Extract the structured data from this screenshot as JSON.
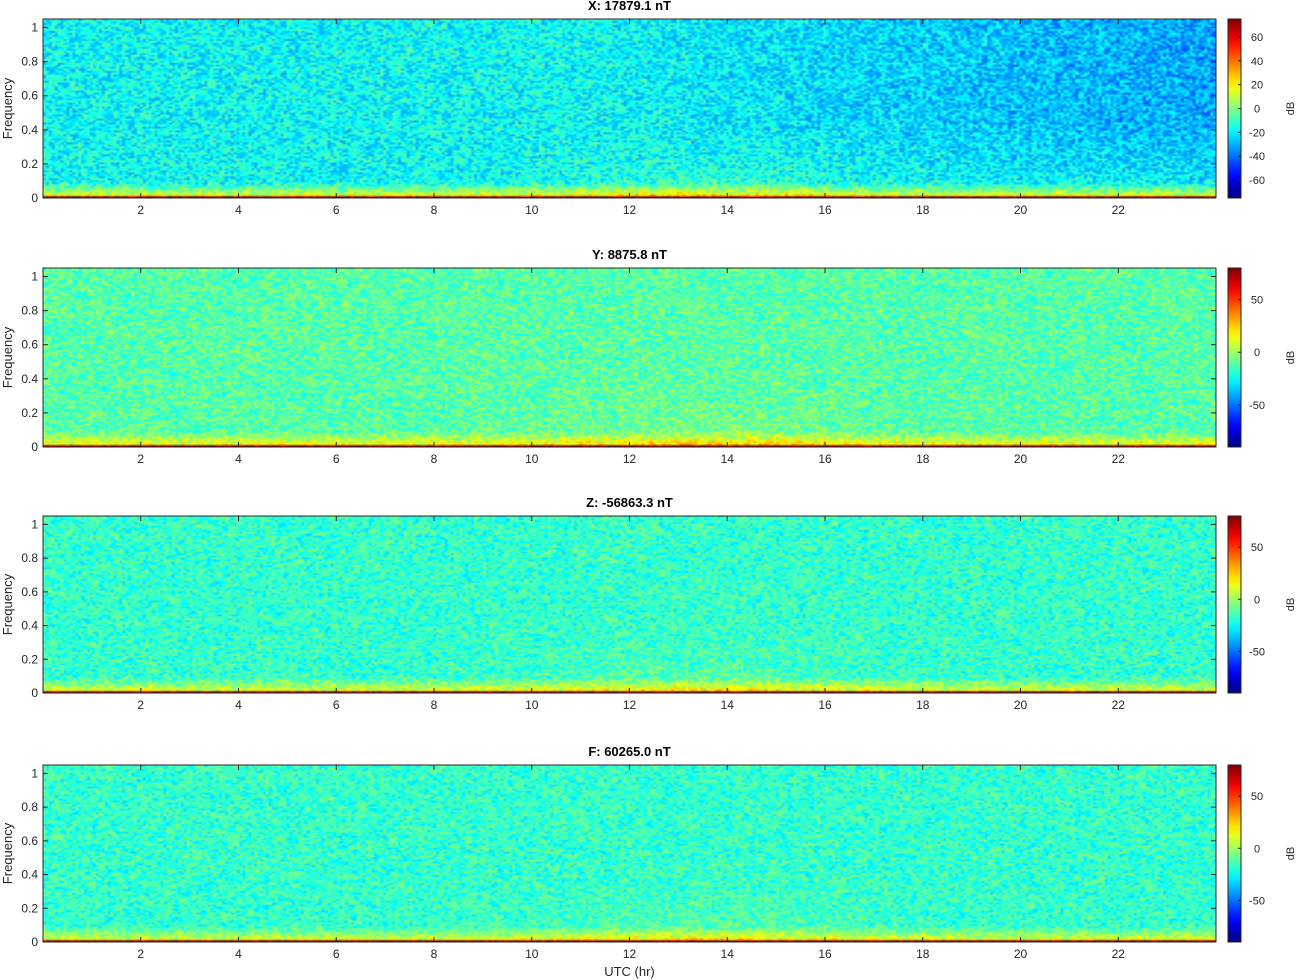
{
  "figure": {
    "xlabel": "UTC (hr)"
  },
  "colorscale": {
    "name": "jet",
    "stops": [
      "#00008f",
      "#0000ff",
      "#00ffff",
      "#ffff00",
      "#ff0000",
      "#800000"
    ]
  },
  "chart_data": [
    {
      "type": "heatmap",
      "title": "X: 17879.1 nT",
      "xlabel": "",
      "ylabel": "Frequency",
      "xlim": [
        0,
        24
      ],
      "ylim": [
        0,
        1.05
      ],
      "xticks": [
        2,
        4,
        6,
        8,
        10,
        12,
        14,
        16,
        18,
        20,
        22
      ],
      "yticks": [
        0,
        0.2,
        0.4,
        0.6,
        0.8,
        1
      ],
      "colorbar": {
        "label": "dB",
        "range": [
          -75,
          75
        ],
        "ticks": [
          -60,
          -40,
          -20,
          0,
          20,
          40,
          60
        ]
      },
      "description_levels": {
        "background_db": -18,
        "low_freq_band_db": 20,
        "dc_line_db": 70
      }
    },
    {
      "type": "heatmap",
      "title": "Y: 8875.8 nT",
      "xlabel": "",
      "ylabel": "Frequency",
      "xlim": [
        0,
        24
      ],
      "ylim": [
        0,
        1.05
      ],
      "xticks": [
        2,
        4,
        6,
        8,
        10,
        12,
        14,
        16,
        18,
        20,
        22
      ],
      "yticks": [
        0,
        0.2,
        0.4,
        0.6,
        0.8,
        1
      ],
      "colorbar": {
        "label": "dB",
        "range": [
          -90,
          80
        ],
        "ticks": [
          -50,
          0,
          50
        ]
      },
      "description_levels": {
        "background_db": -12,
        "low_freq_band_db": 20,
        "dc_line_db": 75
      }
    },
    {
      "type": "heatmap",
      "title": "Z: -56863.3 nT",
      "xlabel": "",
      "ylabel": "Frequency",
      "xlim": [
        0,
        24
      ],
      "ylim": [
        0,
        1.05
      ],
      "xticks": [
        2,
        4,
        6,
        8,
        10,
        12,
        14,
        16,
        18,
        20,
        22
      ],
      "yticks": [
        0,
        0.2,
        0.4,
        0.6,
        0.8,
        1
      ],
      "colorbar": {
        "label": "dB",
        "range": [
          -90,
          80
        ],
        "ticks": [
          -50,
          0,
          50
        ]
      },
      "description_levels": {
        "background_db": -18,
        "low_freq_band_db": 15,
        "dc_line_db": 75
      }
    },
    {
      "type": "heatmap",
      "title": "F: 60265.0 nT",
      "xlabel": "UTC (hr)",
      "ylabel": "Frequency",
      "xlim": [
        0,
        24
      ],
      "ylim": [
        0,
        1.05
      ],
      "xticks": [
        2,
        4,
        6,
        8,
        10,
        12,
        14,
        16,
        18,
        20,
        22
      ],
      "yticks": [
        0,
        0.2,
        0.4,
        0.6,
        0.8,
        1
      ],
      "colorbar": {
        "label": "dB",
        "range": [
          -90,
          80
        ],
        "ticks": [
          -50,
          0,
          50
        ]
      },
      "description_levels": {
        "background_db": -18,
        "low_freq_band_db": 15,
        "dc_line_db": 75
      }
    }
  ]
}
